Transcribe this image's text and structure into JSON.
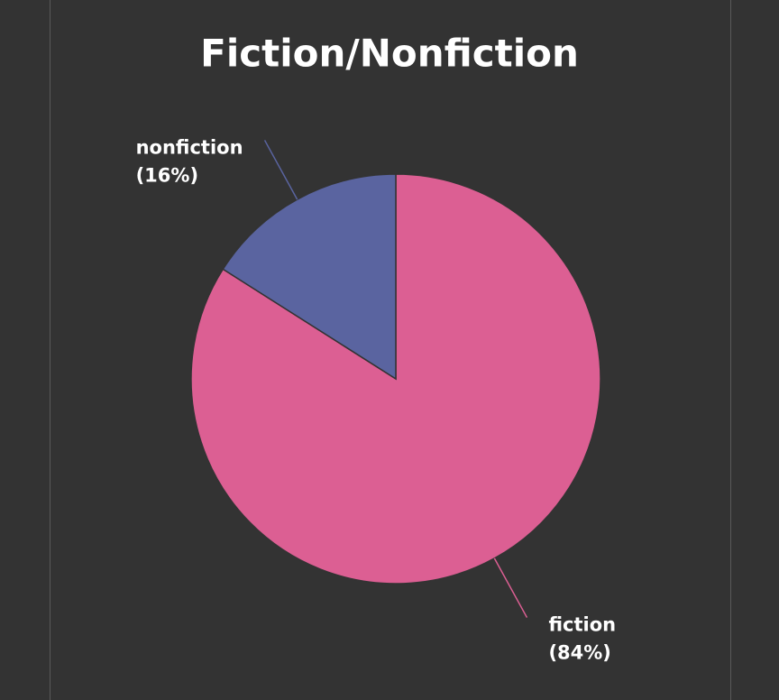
{
  "chart_data": {
    "type": "pie",
    "title": "Fiction/Nonfiction",
    "categories": [
      "fiction",
      "nonfiction"
    ],
    "values": [
      84,
      16
    ],
    "value_labels": [
      "(84%)",
      "(16%)"
    ],
    "colors": [
      "#dc5f93",
      "#5a64a0"
    ]
  }
}
